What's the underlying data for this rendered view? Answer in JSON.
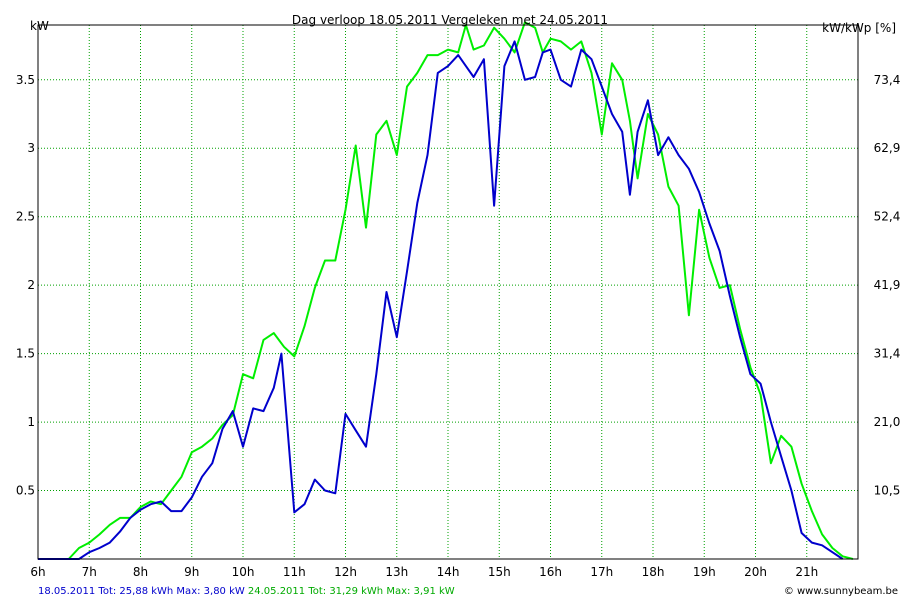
{
  "chart_data": {
    "type": "line",
    "title": "Dag  verloop 18.05.2011   Vergeleken met 24.05.2011",
    "ylabel_left": "kW",
    "ylabel_right": "kW/kWp [%]",
    "x_ticks": [
      "6h",
      "7h",
      "8h",
      "9h",
      "10h",
      "11h",
      "12h",
      "13h",
      "14h",
      "15h",
      "16h",
      "17h",
      "18h",
      "19h",
      "20h",
      "21h"
    ],
    "xlim": [
      6,
      22
    ],
    "ylim": [
      0,
      3.9
    ],
    "y_ticks_left": [
      "0.5",
      "1",
      "1.5",
      "2",
      "2.5",
      "3",
      "3.5"
    ],
    "y_ticks_left_values": [
      0.5,
      1,
      1.5,
      2,
      2.5,
      3,
      3.5
    ],
    "y_ticks_right": [
      "10,5",
      "21,0",
      "31,4",
      "41,9",
      "52,4",
      "62,9",
      "73,4"
    ],
    "grid": true,
    "legend_placement": "bottom-left",
    "credit": "© www.sunnybeam.be",
    "series": [
      {
        "name": "18.05.2011",
        "summary": "18.05.2011 Tot: 25,88 kWh Max: 3,80 kW",
        "color": "#0000cc",
        "x": [
          6.0,
          6.6,
          6.8,
          7.0,
          7.2,
          7.4,
          7.6,
          7.8,
          8.0,
          8.2,
          8.4,
          8.6,
          8.8,
          9.0,
          9.2,
          9.4,
          9.6,
          9.8,
          10.0,
          10.2,
          10.4,
          10.6,
          10.75,
          11.0,
          11.2,
          11.4,
          11.6,
          11.8,
          12.0,
          12.2,
          12.4,
          12.6,
          12.8,
          13.0,
          13.2,
          13.4,
          13.6,
          13.8,
          14.0,
          14.2,
          14.35,
          14.5,
          14.7,
          14.9,
          15.1,
          15.3,
          15.5,
          15.7,
          15.85,
          16.0,
          16.2,
          16.4,
          16.6,
          16.8,
          17.0,
          17.2,
          17.4,
          17.55,
          17.7,
          17.9,
          18.1,
          18.3,
          18.5,
          18.7,
          18.9,
          19.1,
          19.3,
          19.5,
          19.7,
          19.9,
          20.1,
          20.3,
          20.5,
          20.7,
          20.9,
          21.1,
          21.3,
          21.5,
          21.7
        ],
        "y": [
          0,
          0,
          0,
          0.05,
          0.08,
          0.12,
          0.2,
          0.3,
          0.36,
          0.4,
          0.42,
          0.35,
          0.35,
          0.45,
          0.6,
          0.7,
          0.95,
          1.08,
          0.82,
          1.1,
          1.08,
          1.25,
          1.5,
          0.34,
          0.4,
          0.58,
          0.5,
          0.48,
          1.06,
          0.94,
          0.82,
          1.35,
          1.95,
          1.62,
          2.1,
          2.6,
          2.95,
          3.55,
          3.6,
          3.68,
          3.6,
          3.52,
          3.65,
          2.58,
          3.6,
          3.78,
          3.5,
          3.52,
          3.7,
          3.72,
          3.5,
          3.45,
          3.72,
          3.65,
          3.45,
          3.25,
          3.12,
          2.66,
          3.12,
          3.35,
          2.95,
          3.08,
          2.95,
          2.85,
          2.68,
          2.45,
          2.25,
          1.92,
          1.62,
          1.35,
          1.28,
          1.0,
          0.75,
          0.5,
          0.19,
          0.12,
          0.1,
          0.05,
          0
        ],
        "max_kw": 3.8,
        "total_kwh": 25.88
      },
      {
        "name": "24.05.2011",
        "summary": "24.05.2011 Tot: 31,29 kWh Max: 3,91 kW",
        "color": "#00ee00",
        "x": [
          6.0,
          6.4,
          6.6,
          6.8,
          7.0,
          7.2,
          7.4,
          7.6,
          7.8,
          8.0,
          8.2,
          8.4,
          8.6,
          8.8,
          9.0,
          9.2,
          9.4,
          9.6,
          9.8,
          10.0,
          10.2,
          10.4,
          10.6,
          10.8,
          11.0,
          11.2,
          11.4,
          11.6,
          11.8,
          12.0,
          12.2,
          12.4,
          12.6,
          12.8,
          13.0,
          13.2,
          13.4,
          13.6,
          13.8,
          14.0,
          14.2,
          14.35,
          14.5,
          14.7,
          14.9,
          15.1,
          15.3,
          15.5,
          15.7,
          15.85,
          16.0,
          16.2,
          16.4,
          16.6,
          16.8,
          17.0,
          17.2,
          17.4,
          17.55,
          17.7,
          17.9,
          18.1,
          18.3,
          18.5,
          18.7,
          18.9,
          19.1,
          19.3,
          19.5,
          19.7,
          19.9,
          20.1,
          20.3,
          20.5,
          20.7,
          20.9,
          21.1,
          21.3,
          21.5,
          21.7,
          21.9
        ],
        "y": [
          0,
          0,
          0,
          0.08,
          0.12,
          0.18,
          0.25,
          0.3,
          0.3,
          0.38,
          0.42,
          0.4,
          0.5,
          0.6,
          0.78,
          0.82,
          0.88,
          0.98,
          1.05,
          1.35,
          1.32,
          1.6,
          1.65,
          1.55,
          1.48,
          1.7,
          1.98,
          2.18,
          2.18,
          2.55,
          3.02,
          2.42,
          3.1,
          3.2,
          2.95,
          3.45,
          3.55,
          3.68,
          3.68,
          3.72,
          3.7,
          3.9,
          3.72,
          3.75,
          3.88,
          3.8,
          3.7,
          3.92,
          3.88,
          3.7,
          3.8,
          3.78,
          3.72,
          3.78,
          3.55,
          3.1,
          3.62,
          3.5,
          3.2,
          2.78,
          3.25,
          3.1,
          2.72,
          2.58,
          1.78,
          2.55,
          2.2,
          1.98,
          2.0,
          1.68,
          1.4,
          1.2,
          0.7,
          0.9,
          0.82,
          0.55,
          0.35,
          0.18,
          0.08,
          0.02,
          0
        ]
      }
    ]
  }
}
